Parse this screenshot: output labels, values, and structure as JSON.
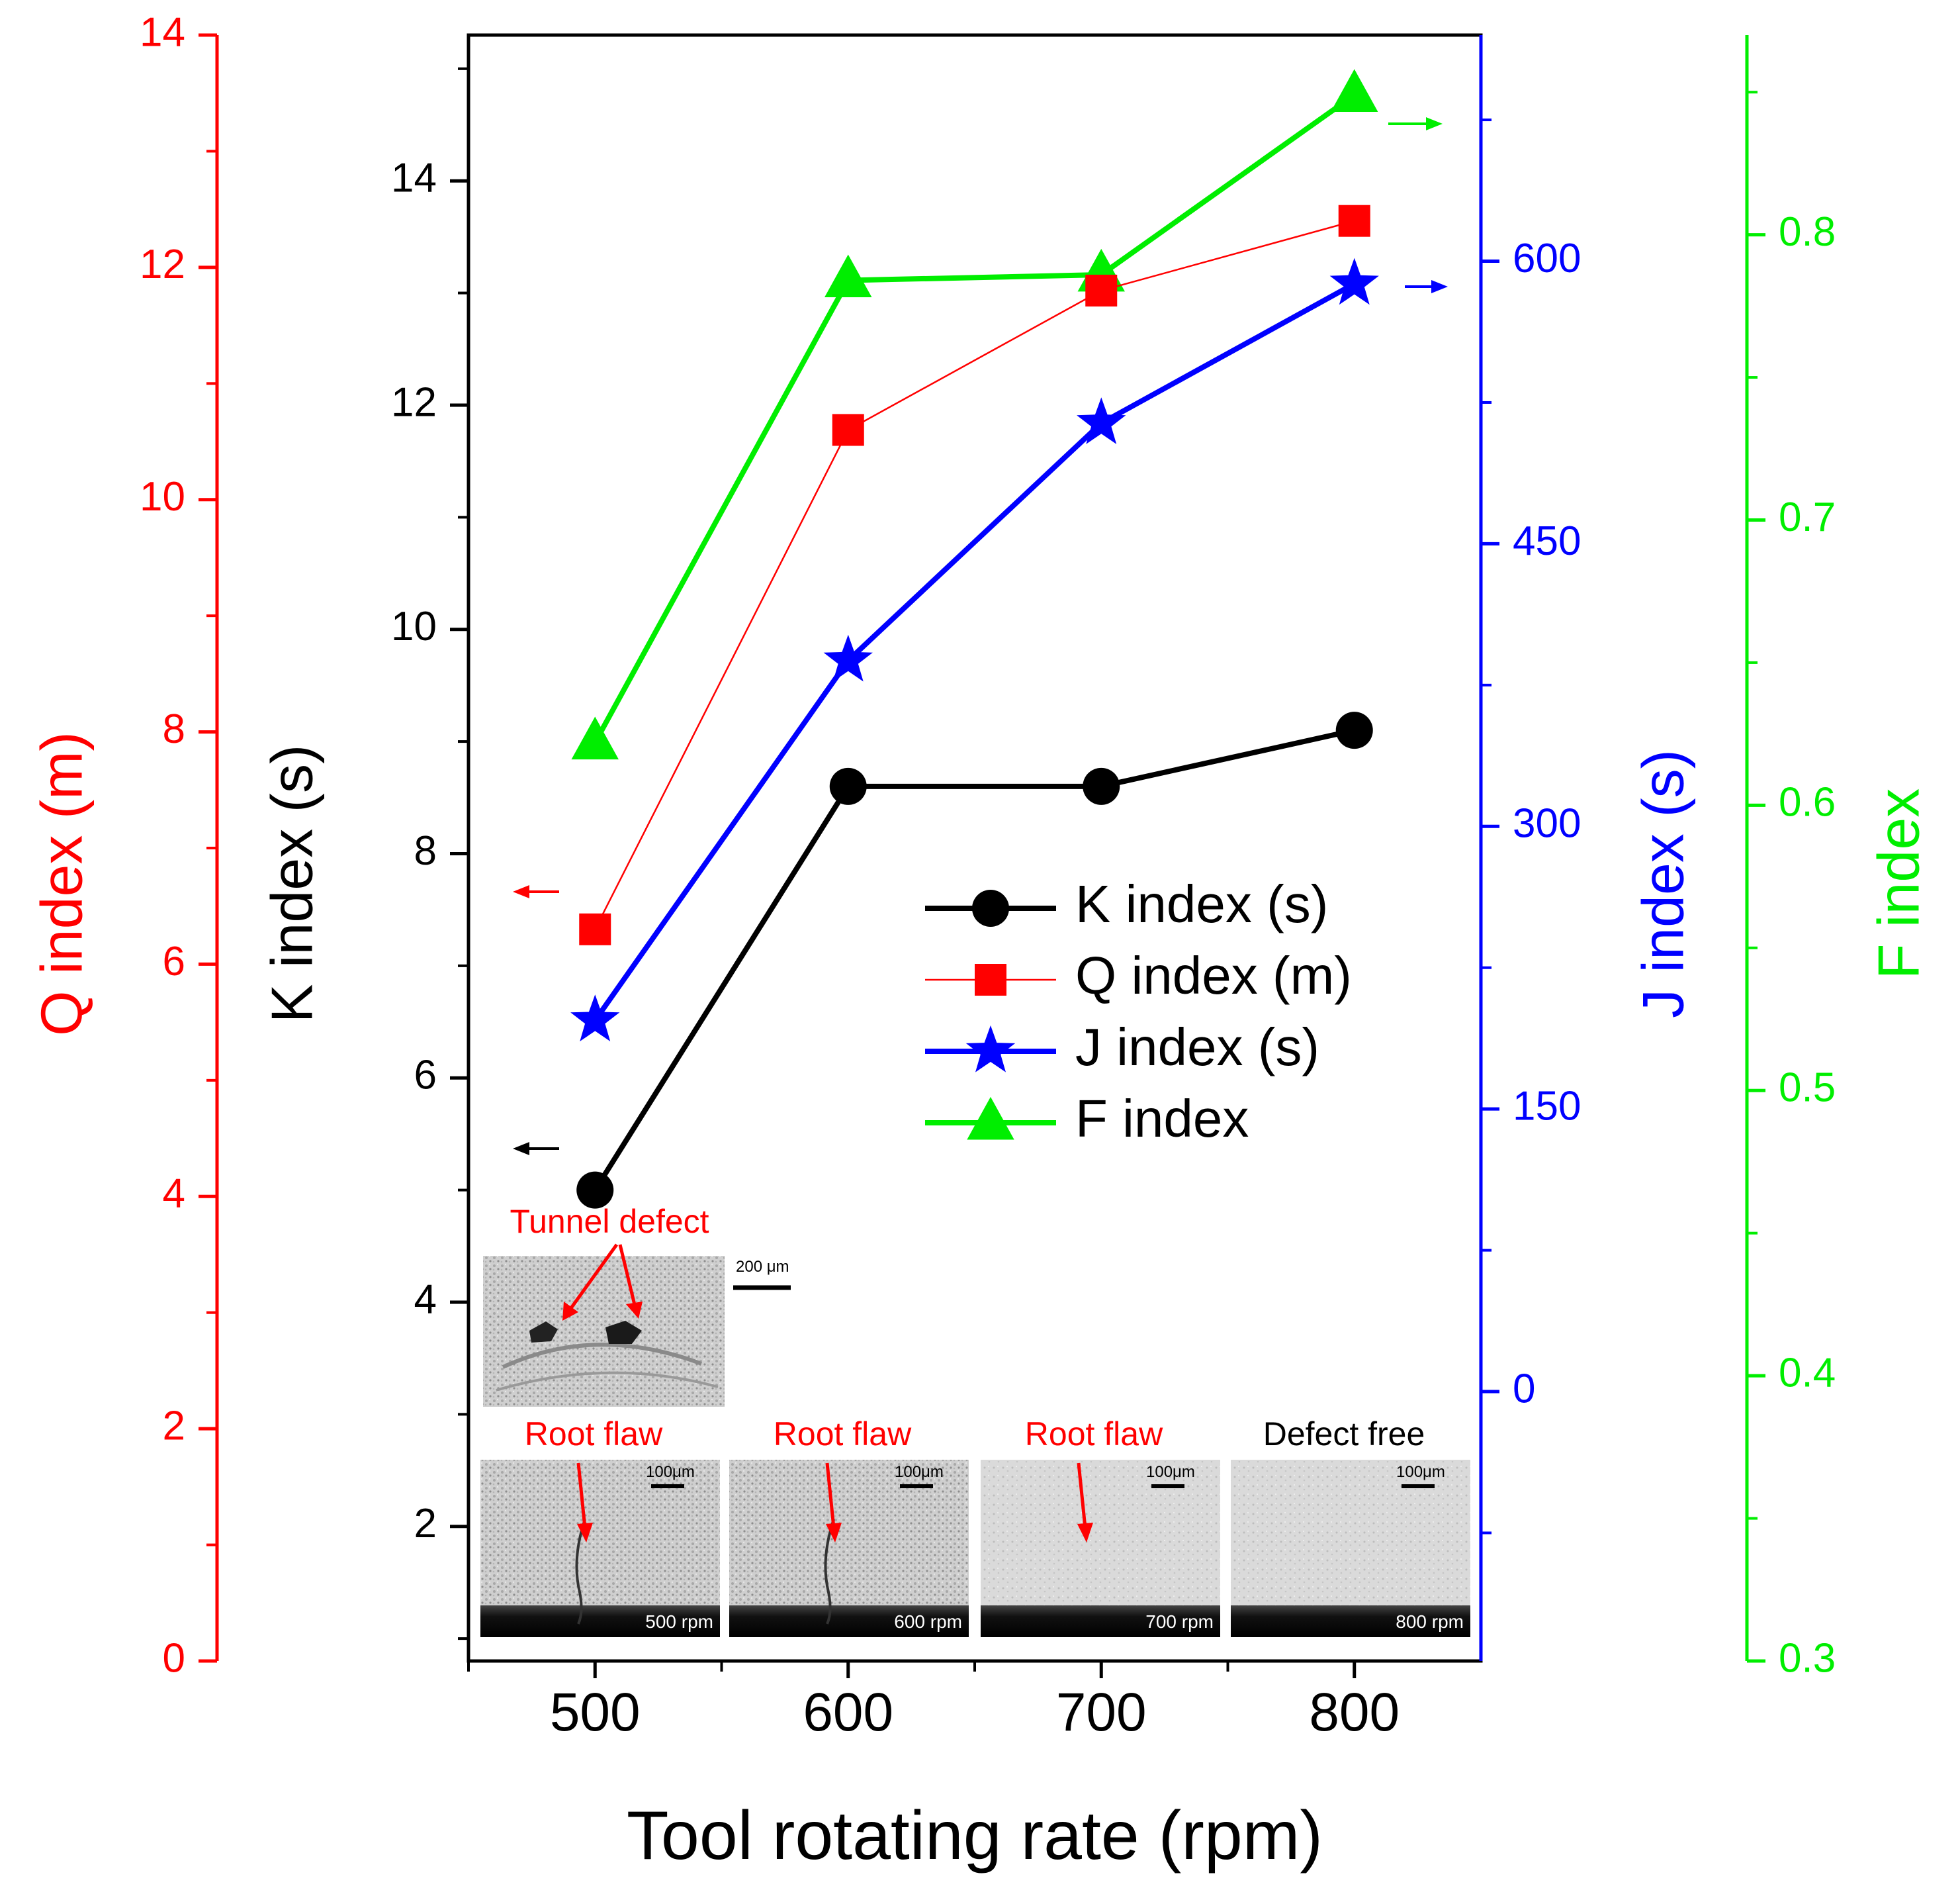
{
  "colors": {
    "k": "#000000",
    "q": "#ff0000",
    "j": "#0000ff",
    "f": "#00ee00"
  },
  "chart_data": {
    "type": "line",
    "title": "",
    "xlabel": "Tool rotating rate (rpm)",
    "x": [
      500,
      600,
      700,
      800
    ],
    "xlim": [
      450,
      850
    ],
    "x_ticks": [
      "500",
      "600",
      "700",
      "800"
    ],
    "series": [
      {
        "name": "K index (s)",
        "axis": "k",
        "marker": "circle",
        "values": [
          5.0,
          8.6,
          8.6,
          9.1
        ]
      },
      {
        "name": "Q index (m)",
        "axis": "q",
        "marker": "square",
        "values": [
          6.3,
          10.6,
          11.8,
          12.4
        ]
      },
      {
        "name": "J index (s)",
        "axis": "j",
        "marker": "star",
        "values": [
          197,
          388,
          514,
          588
        ]
      },
      {
        "name": "F index",
        "axis": "f",
        "marker": "triangle",
        "values": [
          0.622,
          0.784,
          0.786,
          0.849
        ]
      }
    ],
    "axes": {
      "q": {
        "label": "Q index (m)",
        "side": "left-outer",
        "lim": [
          0,
          14
        ],
        "ticks": [
          "0",
          "2",
          "4",
          "6",
          "8",
          "10",
          "12",
          "14"
        ]
      },
      "k": {
        "label": "K index (s)",
        "side": "left",
        "lim": [
          0.8,
          15.3
        ],
        "ticks": [
          "2",
          "4",
          "6",
          "8",
          "10",
          "12",
          "14"
        ]
      },
      "j": {
        "label": "J index (s)",
        "side": "right",
        "lim": [
          -143,
          720
        ],
        "ticks": [
          "0",
          "150",
          "300",
          "450",
          "600"
        ]
      },
      "f": {
        "label": "F index",
        "side": "right-outer",
        "lim": [
          0.3,
          0.87
        ],
        "ticks": [
          "0.3",
          "0.4",
          "0.5",
          "0.6",
          "0.7",
          "0.8"
        ]
      }
    },
    "legend": {
      "position": "center-right",
      "entries": [
        "K index (s)",
        "Q index (m)",
        "J index (s)",
        "F index"
      ]
    },
    "annotations": {
      "tunnel": {
        "label": "Tunnel defect",
        "scale": "200 μm"
      },
      "panels": [
        {
          "label": "Root flaw",
          "scale": "100μm",
          "rpm": "500 rpm"
        },
        {
          "label": "Root flaw",
          "scale": "100μm",
          "rpm": "600 rpm"
        },
        {
          "label": "Root flaw",
          "scale": "100μm",
          "rpm": "700 rpm"
        },
        {
          "label": "Defect free",
          "scale": "100μm",
          "rpm": "800 rpm"
        }
      ]
    }
  }
}
